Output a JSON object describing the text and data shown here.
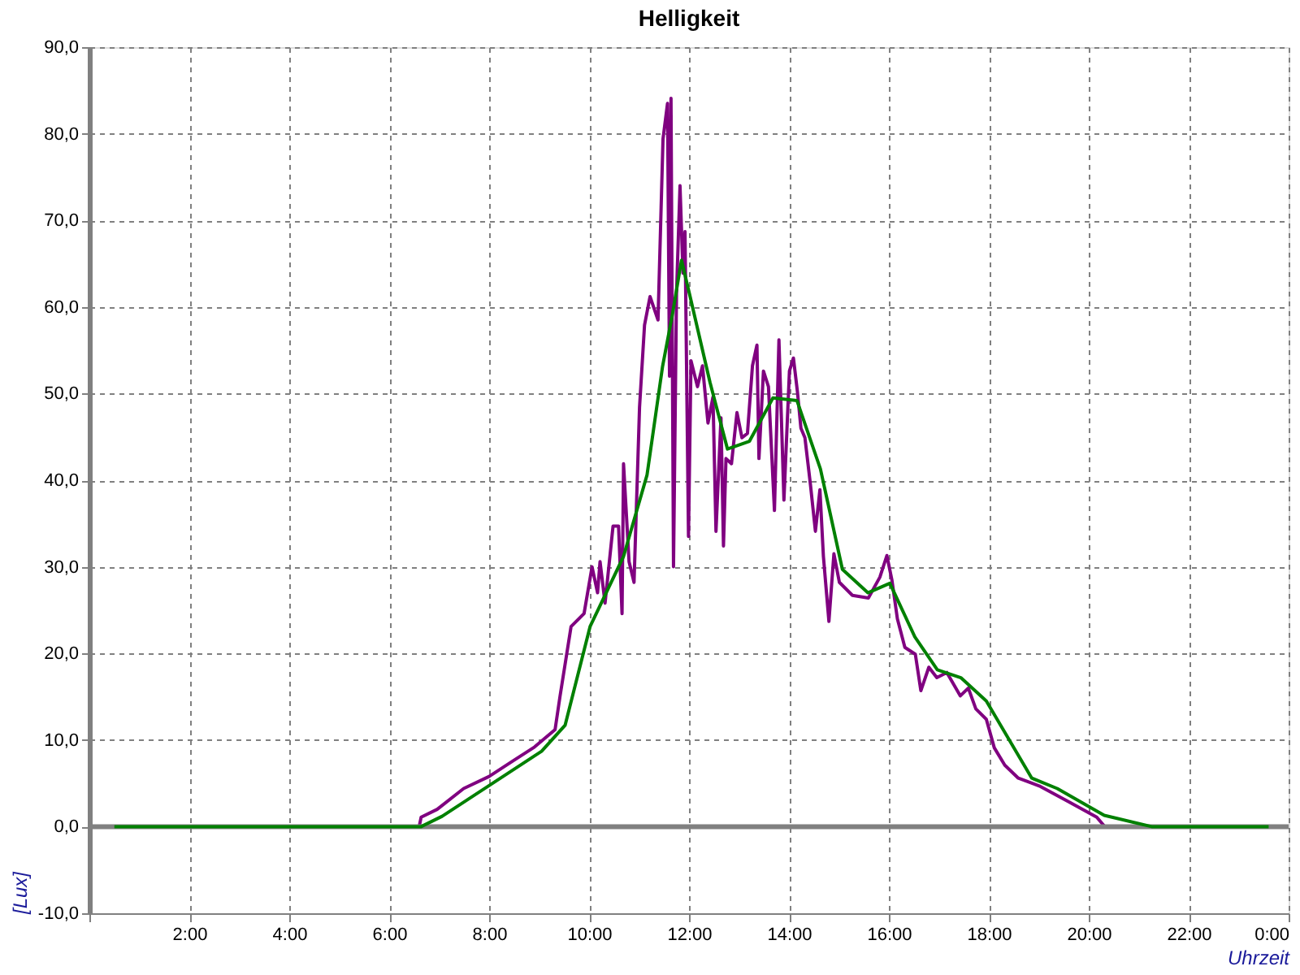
{
  "chart_data": {
    "type": "line",
    "title": "Helligkeit",
    "xlabel": "Uhrzeit",
    "ylabel": "[Lux]",
    "xlim": [
      0,
      24
    ],
    "xticks": [
      {
        "value": 0,
        "label": null
      },
      {
        "value": 2,
        "label": "2:00"
      },
      {
        "value": 4,
        "label": "4:00"
      },
      {
        "value": 6,
        "label": "6:00"
      },
      {
        "value": 8,
        "label": "8:00"
      },
      {
        "value": 10,
        "label": "10:00"
      },
      {
        "value": 12,
        "label": "12:00"
      },
      {
        "value": 14,
        "label": "14:00"
      },
      {
        "value": 16,
        "label": "16:00"
      },
      {
        "value": 18,
        "label": "18:00"
      },
      {
        "value": 20,
        "label": "20:00"
      },
      {
        "value": 22,
        "label": "22:00"
      },
      {
        "value": 24,
        "label": "0:00"
      }
    ],
    "ylim": [
      -10,
      90
    ],
    "yticks": [
      {
        "value": -10,
        "label": "-10,0"
      },
      {
        "value": 0,
        "label": "0,0"
      },
      {
        "value": 10,
        "label": "10,0"
      },
      {
        "value": 20,
        "label": "20,0"
      },
      {
        "value": 30,
        "label": "30,0"
      },
      {
        "value": 40,
        "label": "40,0"
      },
      {
        "value": 50,
        "label": "50,0"
      },
      {
        "value": 60,
        "label": "60,0"
      },
      {
        "value": 70,
        "label": "70,0"
      },
      {
        "value": 80,
        "label": "80,0"
      },
      {
        "value": 90,
        "label": "90,0"
      }
    ],
    "grid": true,
    "marker": "none",
    "line_style": "solid",
    "ref_lines": [
      {
        "axis": "y",
        "value": 0,
        "label": null,
        "color": "#808080"
      }
    ],
    "series": [
      {
        "color": "#800080",
        "x": [
          0,
          6.6,
          6.64,
          6.96,
          7.49,
          8.0,
          8.48,
          8.91,
          9.32,
          9.42,
          9.64,
          9.9,
          10.06,
          10.17,
          10.22,
          10.32,
          10.48,
          10.59,
          10.66,
          10.69,
          10.8,
          10.9,
          11.01,
          11.11,
          11.22,
          11.38,
          11.48,
          11.57,
          11.61,
          11.64,
          11.69,
          11.75,
          11.82,
          11.88,
          11.92,
          11.99,
          12.04,
          12.17,
          12.27,
          12.38,
          12.48,
          12.54,
          12.64,
          12.69,
          12.74,
          12.85,
          12.96,
          13.06,
          13.17,
          13.27,
          13.36,
          13.4,
          13.49,
          13.59,
          13.71,
          13.8,
          13.9,
          14.01,
          14.09,
          14.17,
          14.24,
          14.32,
          14.43,
          14.53,
          14.62,
          14.69,
          14.8,
          14.9,
          15.01,
          15.27,
          15.59,
          15.82,
          15.96,
          16.06,
          16.17,
          16.32,
          16.53,
          16.64,
          16.8,
          16.96,
          17.16,
          17.43,
          17.59,
          17.74,
          17.95,
          18.11,
          18.32,
          18.59,
          19.01,
          19.59,
          20.16,
          20.32,
          24
        ],
        "values": [
          0,
          0,
          1.1,
          2.0,
          4.4,
          5.8,
          7.6,
          9.2,
          11.2,
          15.1,
          23.1,
          24.6,
          30.0,
          27.0,
          30.6,
          25.8,
          34.7,
          34.7,
          24.6,
          41.9,
          30.6,
          28.2,
          48.4,
          57.9,
          61.2,
          58.5,
          79.4,
          83.5,
          52.0,
          84.1,
          30.0,
          61.5,
          74.0,
          63.9,
          68.7,
          33.5,
          53.8,
          50.8,
          53.2,
          46.6,
          49.6,
          34.1,
          47.2,
          32.4,
          42.5,
          41.9,
          47.8,
          44.9,
          45.4,
          53.2,
          55.6,
          42.5,
          52.6,
          50.8,
          36.5,
          56.2,
          37.7,
          52.6,
          54.1,
          50.2,
          46.0,
          44.9,
          39.5,
          34.1,
          38.9,
          31.2,
          23.7,
          31.5,
          28.2,
          26.7,
          26.4,
          28.8,
          31.3,
          28.5,
          24.0,
          20.7,
          19.9,
          15.7,
          18.4,
          17.2,
          17.8,
          15.1,
          16.0,
          13.6,
          12.4,
          9.1,
          7.1,
          5.6,
          4.7,
          2.9,
          1.1,
          0,
          0
        ]
      },
      {
        "color": "#008000",
        "x": [
          0.5,
          6.64,
          7.06,
          9.05,
          9.52,
          10.02,
          10.69,
          11.16,
          11.47,
          11.67,
          11.85,
          12.01,
          12.42,
          12.77,
          13.21,
          13.68,
          14.16,
          14.63,
          15.07,
          15.58,
          16.02,
          16.52,
          16.97,
          17.44,
          17.95,
          18.86,
          19.37,
          20.31,
          21.26,
          23.6
        ],
        "values": [
          0,
          0,
          1.2,
          8.7,
          11.7,
          23.1,
          31.2,
          40.6,
          53.1,
          59.2,
          65.4,
          61.5,
          51.3,
          43.6,
          44.5,
          49.5,
          49.2,
          41.3,
          29.7,
          27.0,
          28.1,
          21.9,
          18.1,
          17.2,
          14.5,
          5.6,
          4.4,
          1.3,
          0,
          0
        ]
      }
    ]
  }
}
